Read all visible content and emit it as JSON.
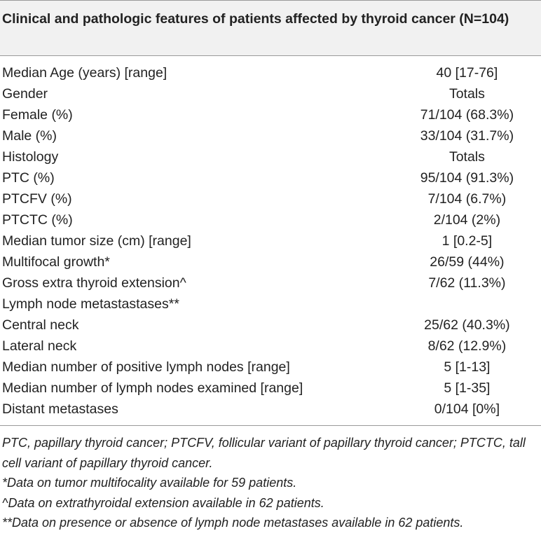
{
  "header": {
    "title": "Clinical and pathologic features of patients affected by thyroid cancer (N=104)"
  },
  "table": {
    "rows": [
      [
        "Median Age (years) [range]",
        "40 [17-76]"
      ],
      [
        "Gender",
        "Totals"
      ],
      [
        "Female (%)",
        "71/104 (68.3%)"
      ],
      [
        "Male (%)",
        "33/104 (31.7%)"
      ],
      [
        "Histology",
        "Totals"
      ],
      [
        "PTC (%)",
        "95/104 (91.3%)"
      ],
      [
        "PTCFV (%)",
        "7/104 (6.7%)"
      ],
      [
        "PTCTC (%)",
        "2/104 (2%)"
      ],
      [
        "Median tumor size (cm) [range]",
        "1 [0.2-5]"
      ],
      [
        "Multifocal growth*",
        "26/59 (44%)"
      ],
      [
        "Gross extra thyroid extension^",
        "7/62 (11.3%)"
      ],
      [
        "Lymph node metastastases**"
      ],
      [
        "Central neck",
        "25/62 (40.3%)"
      ],
      [
        "Lateral neck",
        "8/62 (12.9%)"
      ],
      [
        "Median number of positive lymph nodes [range]",
        "5 [1-13]"
      ],
      [
        "Median number of lymph nodes examined [range]",
        "5 [1-35]"
      ],
      [
        "Distant metastases",
        "0/104 [0%]"
      ]
    ]
  },
  "footnotes": [
    "PTC, papillary thyroid cancer; PTCFV, follicular variant of papillary thyroid cancer; PTCTC, tall cell variant of papillary thyroid cancer.",
    "*Data on tumor multifocality available for 59 patients.",
    "^Data on extrathyroidal extension available in 62 patients.",
    "**Data on presence or absence of lymph node metastases available in 62 patients."
  ]
}
